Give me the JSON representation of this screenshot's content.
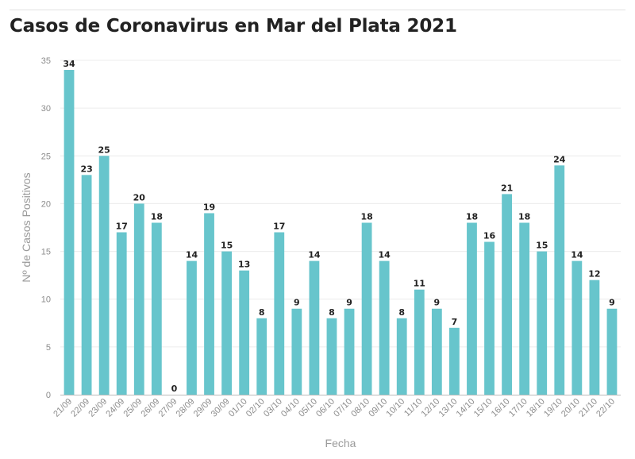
{
  "title": "Casos de Coronavirus en Mar del Plata 2021",
  "colors": {
    "bar": "#67c5cc",
    "text": "#222222",
    "tick": "#8c8c8c"
  },
  "chart_data": {
    "type": "bar",
    "title": "Casos de Coronavirus en Mar del Plata 2021",
    "xlabel": "Fecha",
    "ylabel": "Nº de Casos Positivos",
    "ylim": [
      0,
      35
    ],
    "yticks": [
      0,
      5,
      10,
      15,
      20,
      25,
      30,
      35
    ],
    "grid": true,
    "categories": [
      "21/09",
      "22/09",
      "23/09",
      "24/09",
      "25/09",
      "26/09",
      "27/09",
      "28/09",
      "29/09",
      "30/09",
      "01/10",
      "02/10",
      "03/10",
      "04/10",
      "05/10",
      "06/10",
      "07/10",
      "08/10",
      "09/10",
      "10/10",
      "11/10",
      "12/10",
      "13/10",
      "14/10",
      "15/10",
      "16/10",
      "17/10",
      "18/10",
      "19/10",
      "20/10",
      "21/10",
      "22/10"
    ],
    "values": [
      34,
      23,
      25,
      17,
      20,
      18,
      0,
      14,
      19,
      15,
      13,
      8,
      17,
      9,
      14,
      8,
      9,
      18,
      14,
      8,
      11,
      9,
      7,
      18,
      16,
      21,
      18,
      15,
      24,
      14,
      12,
      9
    ]
  }
}
